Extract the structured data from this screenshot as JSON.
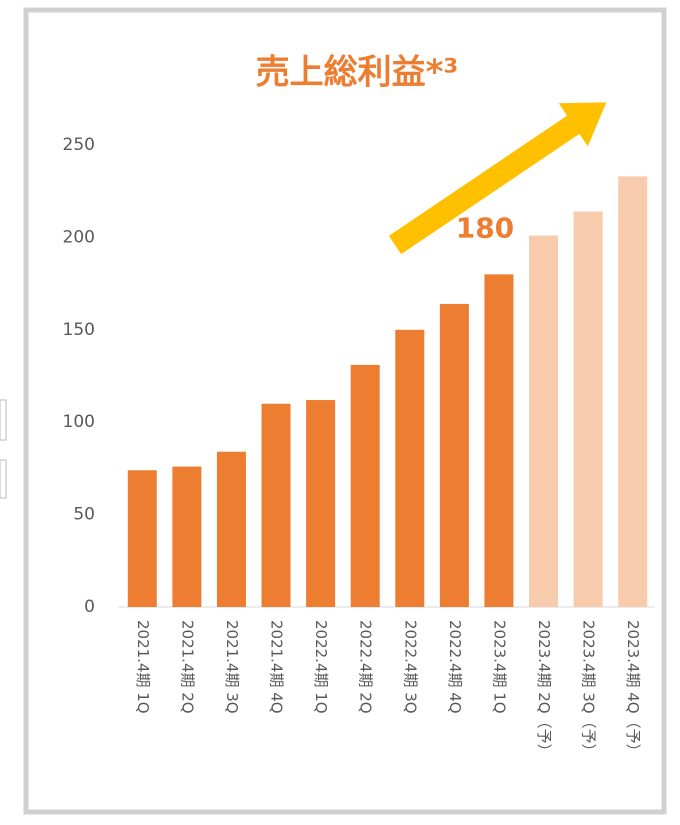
{
  "chart_data": {
    "type": "bar",
    "title": "売上総利益*³",
    "categories": [
      "2021.4期 1Q",
      "2021.4期 2Q",
      "2021.4期 3Q",
      "2021.4期 4Q",
      "2022.4期 1Q",
      "2022.4期 2Q",
      "2022.4期 3Q",
      "2022.4期 4Q",
      "2023.4期 1Q",
      "2023.4期 2Q（予）",
      "2023.4期 3Q（予）",
      "2023.4期 4Q（予）"
    ],
    "values": [
      74,
      76,
      84,
      110,
      112,
      131,
      150,
      164,
      180,
      201,
      214,
      233
    ],
    "colors": [
      "#ed7d31",
      "#ed7d31",
      "#ed7d31",
      "#ed7d31",
      "#ed7d31",
      "#ed7d31",
      "#ed7d31",
      "#ed7d31",
      "#ed7d31",
      "#f8cbad",
      "#f8cbad",
      "#f8cbad"
    ],
    "data_label_index": 8,
    "ylim": [
      0,
      250
    ],
    "yticks": [
      0,
      50,
      100,
      150,
      200,
      250
    ],
    "grid": false
  }
}
